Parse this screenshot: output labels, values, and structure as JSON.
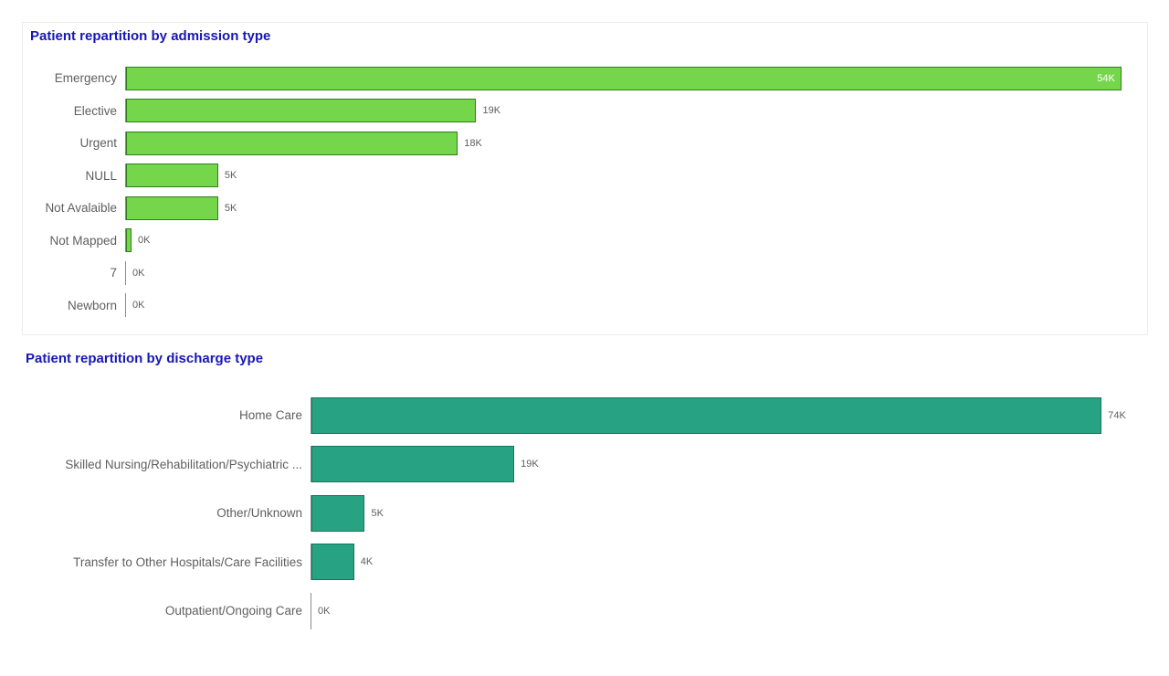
{
  "page": {
    "background": "#ffffff"
  },
  "colors": {
    "title_blue": "#1717b8",
    "admission_bar_fill": "#76d64b",
    "admission_bar_border": "#2e7d1e",
    "discharge_bar_fill": "#27a383",
    "discharge_bar_border": "#17745c",
    "label_gray": "#5f5f5f",
    "value_gray": "#605e5c",
    "axis_line": "#8a8a8a"
  },
  "chart_data": [
    {
      "type": "bar",
      "orientation": "horizontal",
      "title": "Patient repartition by admission type",
      "categories": [
        "Emergency",
        "Elective",
        "Urgent",
        "NULL",
        "Not Avalaible",
        "Not Mapped",
        "7",
        "Newborn"
      ],
      "values": [
        54,
        19,
        18,
        5,
        5,
        0.3,
        0,
        0
      ],
      "value_labels": [
        "54K",
        "19K",
        "18K",
        "5K",
        "5K",
        "0K",
        "0K",
        "0K"
      ],
      "label_inside": [
        true,
        false,
        false,
        false,
        false,
        false,
        false,
        false
      ],
      "xlim": [
        0,
        55
      ],
      "units": "K",
      "bar_color": "#76d64b",
      "bar_border": "#2e7d1e",
      "title_color": "#1717b8",
      "legend": "none",
      "grid": false
    },
    {
      "type": "bar",
      "orientation": "horizontal",
      "title": "Patient repartition by discharge type",
      "categories": [
        "Home Care",
        "Skilled Nursing/Rehabilitation/Psychiatric ...",
        "Other/Unknown",
        "Transfer to Other Hospitals/Care Facilities",
        "Outpatient/Ongoing Care"
      ],
      "values": [
        74,
        19,
        5,
        4,
        0
      ],
      "value_labels": [
        "74K",
        "19K",
        "5K",
        "4K",
        "0K"
      ],
      "label_inside": [
        false,
        false,
        false,
        false,
        false
      ],
      "xlim": [
        0,
        78
      ],
      "units": "K",
      "bar_color": "#27a383",
      "bar_border": "#17745c",
      "title_color": "#1717b8",
      "legend": "none",
      "grid": false
    }
  ]
}
